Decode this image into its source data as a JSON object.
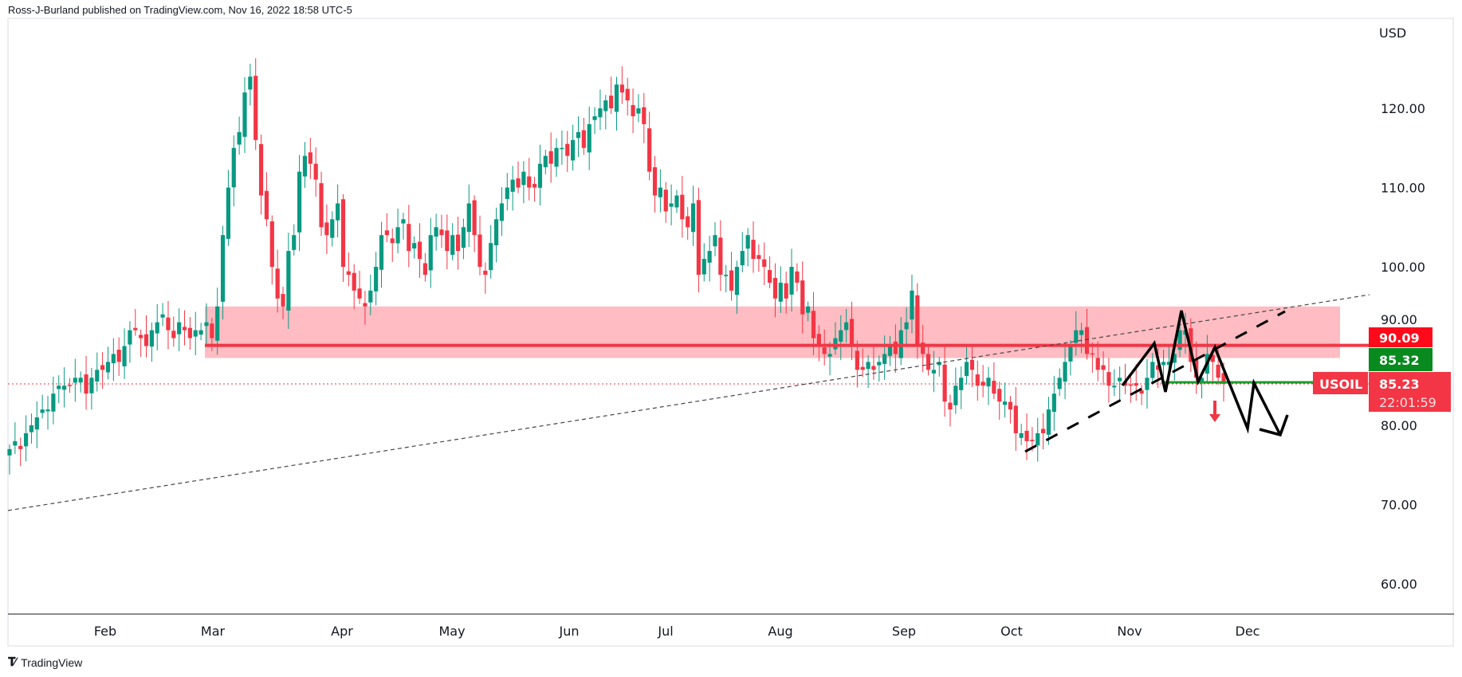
{
  "header": {
    "published": "Ross-J-Burland published on TradingView.com, Nov 16, 2022 18:58 UTC-5"
  },
  "footer": {
    "logo_text": "TradingView"
  },
  "colors": {
    "up": "#089981",
    "down": "#f23645",
    "zone": "#ffbcc2",
    "resistance": "#f23645",
    "support": "#1e9b2a",
    "label_red": "#ff0a1a",
    "label_green": "#088a1e"
  },
  "chart_data": {
    "type": "candlestick",
    "symbol": "USOIL",
    "currency": "USD",
    "ylim": [
      55,
      132
    ],
    "yticks": [
      "120.00",
      "110.00",
      "100.00",
      "90.00",
      "80.00",
      "70.00",
      "60.00"
    ],
    "ytick_values": [
      120,
      110,
      100,
      90,
      80,
      70,
      60
    ],
    "xticks": [
      "Feb",
      "Mar",
      "Apr",
      "May",
      "Jun",
      "Jul",
      "Aug",
      "Sep",
      "Oct",
      "Nov",
      "Dec"
    ],
    "grid": false,
    "daily_closes": [
      77,
      78,
      77,
      79,
      80,
      81,
      82,
      82,
      84,
      85,
      85,
      85,
      86,
      86,
      84,
      86,
      87,
      87,
      88,
      89,
      88,
      90,
      92,
      92,
      91,
      90,
      92,
      93,
      94,
      92,
      91,
      93,
      92,
      91,
      92,
      92,
      93,
      91,
      95,
      104,
      110,
      115,
      117,
      122,
      124,
      116,
      109,
      106,
      100,
      96,
      95,
      102,
      104,
      112,
      114,
      113,
      111,
      105,
      104,
      106,
      108,
      100,
      99,
      97,
      96,
      95,
      97,
      100,
      104,
      104,
      103,
      105,
      106,
      102,
      103,
      101,
      99,
      104,
      105,
      104,
      102,
      104,
      102,
      105,
      108,
      104,
      100,
      99,
      103,
      106,
      108,
      110,
      111,
      110,
      112,
      110,
      110,
      113,
      114,
      113,
      115,
      115,
      114,
      116,
      117,
      115,
      118,
      119,
      120,
      121,
      120,
      123,
      122,
      121,
      119,
      120,
      118,
      112,
      109,
      110,
      107,
      108,
      109,
      106,
      105,
      108,
      99,
      101,
      102,
      104,
      99,
      99,
      97,
      100,
      102,
      104,
      101,
      101,
      100,
      98,
      96,
      98,
      96,
      100,
      98,
      94,
      95,
      91,
      90,
      89,
      89,
      91,
      92,
      93,
      90,
      87,
      87,
      88,
      87,
      88,
      89,
      90,
      89,
      92,
      93,
      97,
      90,
      89,
      87,
      87,
      88,
      83,
      82,
      85,
      86,
      88,
      87,
      85,
      85,
      86,
      84,
      83,
      83,
      82,
      79,
      79,
      78,
      78,
      79,
      79,
      82,
      84,
      86,
      88,
      90,
      92,
      92,
      89,
      89,
      87,
      87,
      85,
      85,
      86,
      85,
      85,
      85,
      84,
      86,
      88,
      87,
      88,
      88,
      89,
      92,
      92,
      88,
      86,
      86,
      89,
      88,
      86,
      85.23
    ],
    "annotations": {
      "resistance_zone": [
        88.5,
        95
      ],
      "resistance_level": "90.09",
      "support_level": "85.32",
      "last_price": "85.23",
      "countdown": "22:01:59",
      "symbol_label": "USOIL"
    }
  }
}
